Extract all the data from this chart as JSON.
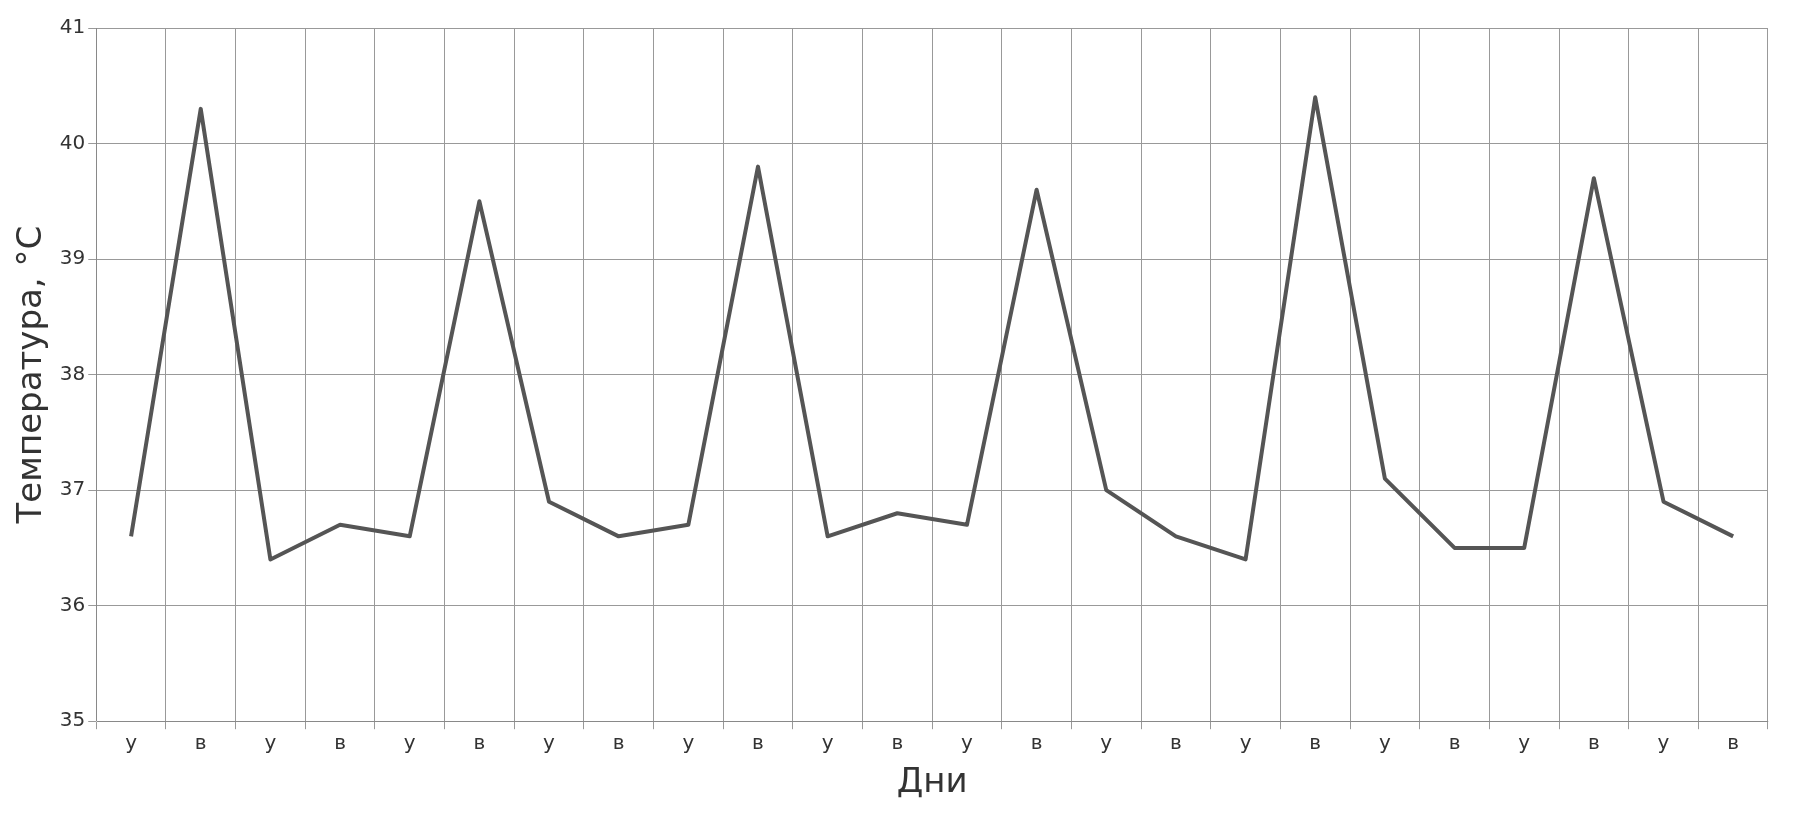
{
  "chart_data": {
    "type": "line",
    "xlabel": "Дни",
    "ylabel": "Температура, °C",
    "categories": [
      "у",
      "в",
      "у",
      "в",
      "у",
      "в",
      "у",
      "в",
      "у",
      "в",
      "у",
      "в",
      "у",
      "в",
      "у",
      "в",
      "у",
      "в",
      "у",
      "в",
      "у",
      "в",
      "у",
      "в"
    ],
    "series": [
      {
        "color": "#555555",
        "values": [
          36.6,
          40.3,
          36.4,
          36.7,
          36.6,
          39.5,
          36.9,
          36.6,
          36.7,
          39.8,
          36.6,
          36.8,
          36.7,
          39.6,
          37.0,
          36.6,
          36.4,
          40.4,
          37.1,
          36.5,
          36.5,
          39.7,
          36.9,
          36.6
        ]
      }
    ],
    "ylim": [
      35,
      41
    ],
    "yticks": [
      35,
      36,
      37,
      38,
      39,
      40,
      41
    ],
    "grid": true,
    "legend": false,
    "marker": "none",
    "line_style": "solid"
  }
}
